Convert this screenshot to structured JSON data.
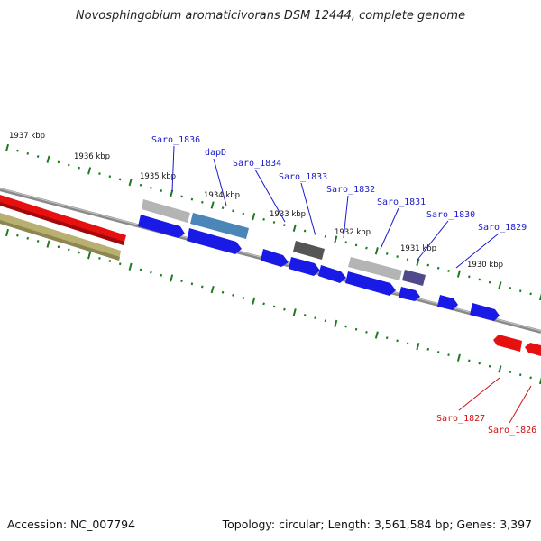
{
  "title": "Novosphingobium aromaticivorans DSM 12444, complete genome",
  "footer": {
    "accession": "Accession: NC_007794",
    "summary": "Topology: circular; Length: 3,561,584 bp; Genes: 3,397"
  },
  "colors": {
    "forward_gene": "#1a1ae6",
    "reverse_gene": "#e61010",
    "tick": "#1e7a1e",
    "backbone": "#8a8a8a",
    "label_forward": "#1a1acc",
    "label_reverse": "#d01010",
    "feature_gray": "#b4b4b4",
    "feature_steel": "#4a86b8",
    "feature_dark": "#555555",
    "feature_purple": "#504a8c",
    "feature_olive": "#b8b070"
  },
  "ticks": [
    {
      "label": "1937 kbp"
    },
    {
      "label": "1936 kbp"
    },
    {
      "label": "1935 kbp"
    },
    {
      "label": "1934 kbp"
    },
    {
      "label": "1933 kbp"
    },
    {
      "label": "1932 kbp"
    },
    {
      "label": "1931 kbp"
    },
    {
      "label": "1930 kbp"
    }
  ],
  "gene_labels": [
    {
      "name": "Saro_1836",
      "strand": "forward"
    },
    {
      "name": "dapD",
      "strand": "forward"
    },
    {
      "name": "Saro_1834",
      "strand": "forward"
    },
    {
      "name": "Saro_1833",
      "strand": "forward"
    },
    {
      "name": "Saro_1832",
      "strand": "forward"
    },
    {
      "name": "Saro_1831",
      "strand": "forward"
    },
    {
      "name": "Saro_1830",
      "strand": "forward"
    },
    {
      "name": "Saro_1829",
      "strand": "forward"
    },
    {
      "name": "Saro_1827",
      "strand": "reverse"
    },
    {
      "name": "Saro_1826",
      "strand": "reverse"
    }
  ]
}
